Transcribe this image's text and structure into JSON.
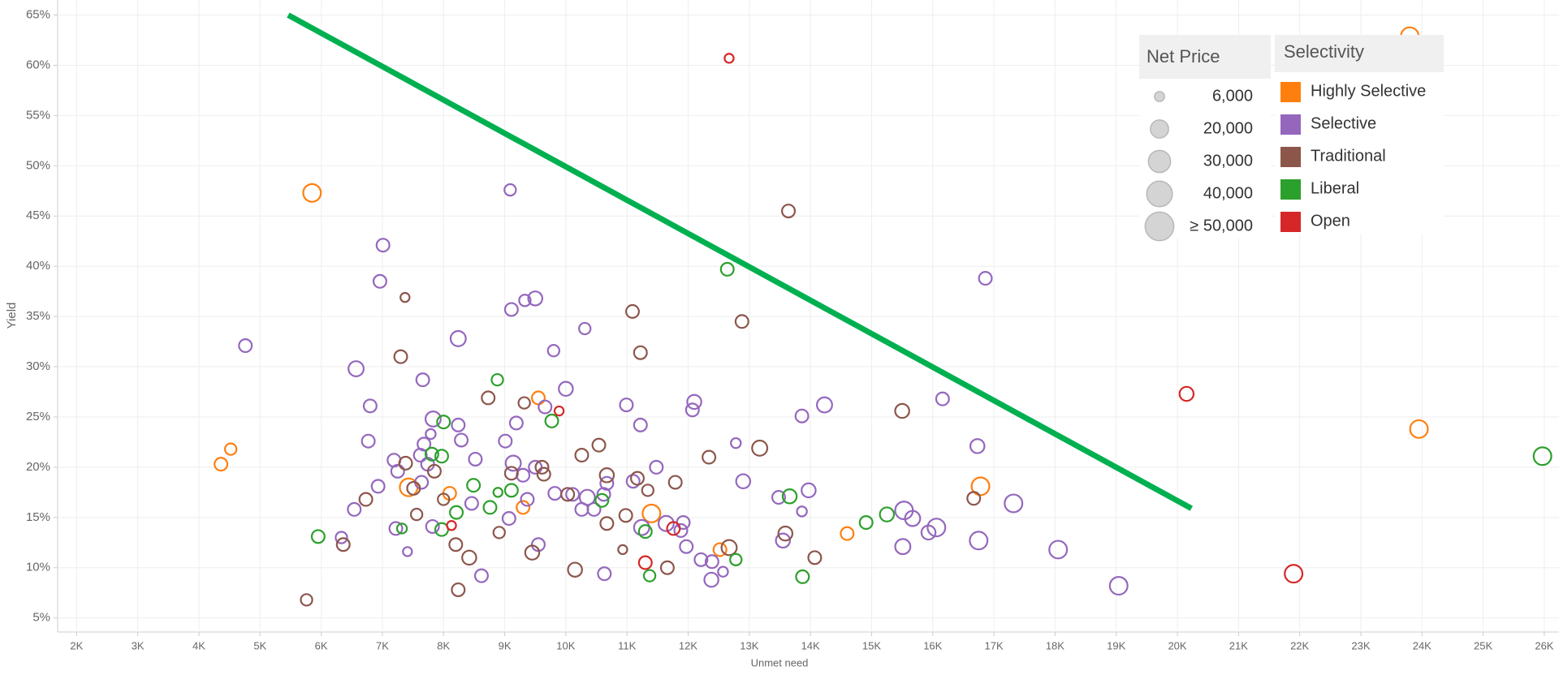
{
  "chart_data": {
    "type": "scatter",
    "x_label": "Unmet need",
    "y_label": "Yield",
    "xlim": [
      1690,
      26240
    ],
    "ylim": [
      3.6,
      66.5
    ],
    "xticks": [
      {
        "value": 2000,
        "label": "2K"
      },
      {
        "value": 3000,
        "label": "3K"
      },
      {
        "value": 4000,
        "label": "4K"
      },
      {
        "value": 5000,
        "label": "5K"
      },
      {
        "value": 6000,
        "label": "6K"
      },
      {
        "value": 7000,
        "label": "7K"
      },
      {
        "value": 8000,
        "label": "8K"
      },
      {
        "value": 9000,
        "label": "9K"
      },
      {
        "value": 10000,
        "label": "10K"
      },
      {
        "value": 11000,
        "label": "11K"
      },
      {
        "value": 12000,
        "label": "12K"
      },
      {
        "value": 13000,
        "label": "13K"
      },
      {
        "value": 14000,
        "label": "14K"
      },
      {
        "value": 15000,
        "label": "15K"
      },
      {
        "value": 16000,
        "label": "16K"
      },
      {
        "value": 17000,
        "label": "17K"
      },
      {
        "value": 18000,
        "label": "18K"
      },
      {
        "value": 19000,
        "label": "19K"
      },
      {
        "value": 20000,
        "label": "20K"
      },
      {
        "value": 21000,
        "label": "21K"
      },
      {
        "value": 22000,
        "label": "22K"
      },
      {
        "value": 23000,
        "label": "23K"
      },
      {
        "value": 24000,
        "label": "24K"
      },
      {
        "value": 25000,
        "label": "25K"
      },
      {
        "value": 26000,
        "label": "26K"
      }
    ],
    "yticks": [
      {
        "value": 5,
        "label": "5%"
      },
      {
        "value": 10,
        "label": "10%"
      },
      {
        "value": 15,
        "label": "15%"
      },
      {
        "value": 20,
        "label": "20%"
      },
      {
        "value": 25,
        "label": "25%"
      },
      {
        "value": 30,
        "label": "30%"
      },
      {
        "value": 35,
        "label": "35%"
      },
      {
        "value": 40,
        "label": "40%"
      },
      {
        "value": 45,
        "label": "45%"
      },
      {
        "value": 50,
        "label": "50%"
      },
      {
        "value": 55,
        "label": "55%"
      },
      {
        "value": 60,
        "label": "60%"
      },
      {
        "value": 65,
        "label": "65%"
      }
    ],
    "grid": true,
    "trend_line": {
      "x": [
        5460,
        20230
      ],
      "y": [
        65,
        15.9
      ],
      "color": "#00b050"
    },
    "size_legend": {
      "title": "Net Price",
      "items": [
        {
          "value": 6000,
          "label": "6,000"
        },
        {
          "value": 20000,
          "label": "20,000"
        },
        {
          "value": 30000,
          "label": "30,000"
        },
        {
          "value": 40000,
          "label": "40,000"
        },
        {
          "value": 50000,
          "label": "≥ 50,000"
        }
      ]
    },
    "color_legend_title": "Selectivity",
    "series": [
      {
        "name": "Highly Selective",
        "color": "#ff7f0e",
        "x": [
          23800,
          5850,
          4360,
          4520,
          7430,
          8100,
          9550,
          9300,
          11400,
          12520,
          14600,
          16780,
          23950
        ],
        "y": [
          62.9,
          47.3,
          20.3,
          21.8,
          18.0,
          17.4,
          26.9,
          16.0,
          15.4,
          11.8,
          13.4,
          18.1,
          23.8
        ],
        "size": [
          19000,
          19000,
          10000,
          8000,
          19000,
          10000,
          10000,
          10000,
          19000,
          10000,
          10000,
          19000,
          19000
        ]
      },
      {
        "name": "Selective",
        "color": "#9467bd",
        "x": [
          4760,
          7010,
          6960,
          6570,
          6800,
          6770,
          6540,
          6330,
          6930,
          7190,
          7250,
          7410,
          7220,
          7660,
          7790,
          7830,
          7680,
          7740,
          7620,
          7640,
          7820,
          8240,
          8240,
          8290,
          8520,
          8460,
          8620,
          9090,
          9110,
          9330,
          9500,
          9800,
          10310,
          10000,
          9190,
          9660,
          9010,
          9140,
          9300,
          9370,
          9500,
          9070,
          9550,
          9820,
          10110,
          10260,
          10350,
          10460,
          10620,
          10670,
          10630,
          10990,
          11220,
          11100,
          11240,
          11480,
          11640,
          11880,
          11920,
          11970,
          12070,
          12100,
          12210,
          12380,
          12390,
          12570,
          12780,
          12900,
          13480,
          13550,
          13860,
          13860,
          13970,
          14230,
          15530,
          15510,
          15670,
          15930,
          16060,
          16160,
          16750,
          16730,
          16860,
          17320,
          18050,
          19040
        ],
        "y": [
          32.1,
          42.1,
          38.5,
          29.8,
          26.1,
          22.6,
          15.8,
          13.0,
          18.1,
          20.7,
          19.6,
          11.6,
          13.9,
          28.7,
          23.3,
          24.8,
          22.3,
          20.3,
          21.2,
          18.5,
          14.1,
          32.8,
          24.2,
          22.7,
          20.8,
          16.4,
          9.2,
          47.6,
          35.7,
          36.6,
          36.8,
          31.6,
          33.8,
          27.8,
          24.4,
          26.0,
          22.6,
          20.4,
          19.2,
          16.8,
          20.0,
          14.9,
          12.3,
          17.4,
          17.3,
          15.8,
          17.0,
          15.8,
          17.3,
          18.4,
          9.4,
          26.2,
          24.2,
          18.6,
          14.0,
          20.0,
          14.4,
          13.7,
          14.5,
          12.1,
          25.7,
          26.5,
          10.8,
          8.8,
          10.6,
          9.6,
          22.4,
          18.6,
          17.0,
          12.7,
          25.1,
          15.6,
          17.7,
          26.2,
          15.7,
          12.1,
          14.9,
          13.5,
          14.0,
          26.8,
          12.7,
          22.1,
          38.8,
          16.4,
          11.8,
          8.2
        ],
        "size": [
          10000,
          10000,
          10000,
          14000,
          10000,
          10000,
          10000,
          8000,
          10000,
          10000,
          10000,
          5000,
          10000,
          10000,
          6000,
          14000,
          10000,
          10000,
          10000,
          10000,
          10000,
          14000,
          10000,
          10000,
          10000,
          10000,
          10000,
          8000,
          10000,
          8000,
          12000,
          8000,
          8000,
          12000,
          10000,
          10000,
          10000,
          14000,
          10000,
          10000,
          10000,
          10000,
          10000,
          10000,
          10000,
          10000,
          14000,
          10000,
          10000,
          10000,
          10000,
          10000,
          10000,
          10000,
          14000,
          10000,
          14000,
          10000,
          10000,
          10000,
          10000,
          12000,
          10000,
          12000,
          10000,
          6000,
          6000,
          12000,
          10000,
          12000,
          10000,
          6000,
          12000,
          14000,
          19000,
          14000,
          14000,
          12000,
          19000,
          10000,
          19000,
          12000,
          10000,
          19000,
          19000,
          19000
        ]
      },
      {
        "name": "Traditional",
        "color": "#8c564b",
        "x": [
          5760,
          6360,
          6730,
          7300,
          7370,
          7380,
          7510,
          7560,
          7850,
          8000,
          8200,
          8420,
          8240,
          8730,
          8910,
          9110,
          9320,
          9450,
          9610,
          9640,
          10030,
          10150,
          10260,
          10540,
          10670,
          10670,
          10930,
          10980,
          11090,
          11170,
          11220,
          11340,
          11660,
          11790,
          12340,
          12670,
          12880,
          13170,
          13590,
          13640,
          14070,
          15500,
          16670
        ],
        "y": [
          6.8,
          12.3,
          16.8,
          31.0,
          36.9,
          20.4,
          17.9,
          15.3,
          19.6,
          16.8,
          12.3,
          11.0,
          7.8,
          26.9,
          13.5,
          19.4,
          26.4,
          11.5,
          20.0,
          19.3,
          17.3,
          9.8,
          21.2,
          22.2,
          19.2,
          14.4,
          11.8,
          15.2,
          35.5,
          18.9,
          31.4,
          17.7,
          10.0,
          18.5,
          21.0,
          12.0,
          34.5,
          21.9,
          13.4,
          45.5,
          11.0,
          25.6,
          16.9
        ],
        "size": [
          8000,
          10000,
          10000,
          10000,
          5000,
          10000,
          10000,
          8000,
          10000,
          8000,
          10000,
          12000,
          10000,
          10000,
          8000,
          10000,
          8000,
          12000,
          10000,
          10000,
          10000,
          12000,
          10000,
          10000,
          12000,
          10000,
          5000,
          10000,
          10000,
          10000,
          10000,
          8000,
          10000,
          10000,
          10000,
          14000,
          10000,
          14000,
          12000,
          10000,
          10000,
          12000,
          10000
        ]
      },
      {
        "name": "Liberal",
        "color": "#2ca02c",
        "x": [
          5950,
          7320,
          7810,
          8000,
          7970,
          7970,
          8210,
          8490,
          8760,
          8890,
          8880,
          9110,
          9770,
          10590,
          11300,
          11370,
          12640,
          12780,
          13660,
          13870,
          14910,
          15250,
          25970
        ],
        "y": [
          13.1,
          13.9,
          21.3,
          24.5,
          21.1,
          13.8,
          15.5,
          18.2,
          16.0,
          17.5,
          28.7,
          17.7,
          24.6,
          16.7,
          13.6,
          9.2,
          39.7,
          10.8,
          17.1,
          9.1,
          14.5,
          15.3,
          21.1
        ],
        "size": [
          10000,
          6000,
          10000,
          10000,
          10000,
          10000,
          10000,
          10000,
          10000,
          5000,
          8000,
          10000,
          10000,
          10000,
          10000,
          8000,
          10000,
          8000,
          12000,
          10000,
          10000,
          12000,
          19000
        ]
      },
      {
        "name": "Open",
        "color": "#d62728",
        "x": [
          12670,
          9890,
          8130,
          11300,
          11760,
          20150,
          21900
        ],
        "y": [
          60.7,
          25.6,
          14.2,
          10.5,
          13.9,
          27.3,
          9.4
        ],
        "size": [
          5000,
          5000,
          5000,
          10000,
          10000,
          12000,
          19000
        ]
      }
    ]
  }
}
